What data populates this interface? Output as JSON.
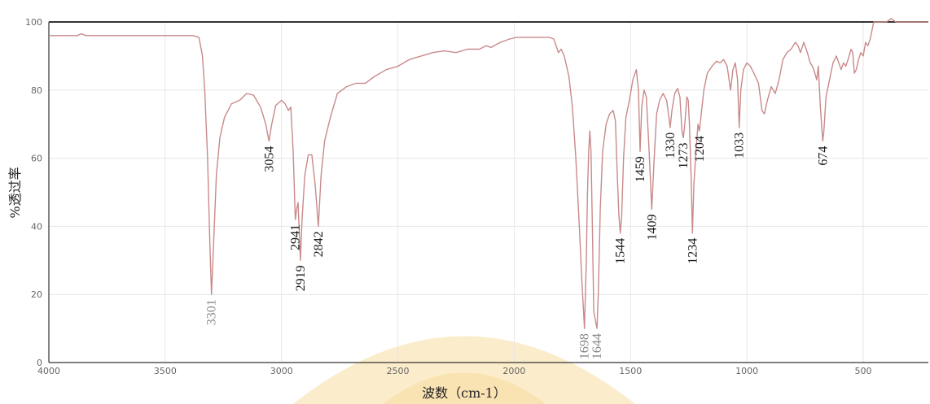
{
  "chart_data": {
    "type": "line",
    "title": "",
    "xlabel": "波数（cm-1）",
    "ylabel": "%透过率",
    "xlim": [
      4000,
      220
    ],
    "ylim": [
      0,
      100
    ],
    "x_ticks": [
      "4000",
      "3500",
      "3000",
      "2500",
      "2000",
      "1500",
      "1000",
      "500"
    ],
    "y_ticks": [
      "0",
      "20",
      "40",
      "60",
      "80",
      "100"
    ],
    "grid": true,
    "colors": {
      "line": "#c98a8a",
      "grid": "#e6e6e6",
      "frame": "#333333",
      "peak_label": "#1a1a1a",
      "peak_label_light": "#888888",
      "watermark": "#f3c96a"
    },
    "series": [
      {
        "points": [
          [
            4000,
            96
          ],
          [
            3880,
            96
          ],
          [
            3860,
            96.5
          ],
          [
            3840,
            96
          ],
          [
            3500,
            96
          ],
          [
            3380,
            96
          ],
          [
            3355,
            95.5
          ],
          [
            3340,
            90
          ],
          [
            3330,
            80
          ],
          [
            3318,
            60
          ],
          [
            3308,
            35
          ],
          [
            3301,
            20
          ],
          [
            3292,
            35
          ],
          [
            3280,
            55
          ],
          [
            3265,
            66
          ],
          [
            3245,
            72
          ],
          [
            3215,
            76
          ],
          [
            3180,
            77
          ],
          [
            3150,
            79
          ],
          [
            3120,
            78.5
          ],
          [
            3090,
            75
          ],
          [
            3068,
            70
          ],
          [
            3054,
            65
          ],
          [
            3042,
            70
          ],
          [
            3025,
            75.5
          ],
          [
            3000,
            77
          ],
          [
            2985,
            76
          ],
          [
            2970,
            74
          ],
          [
            2960,
            75
          ],
          [
            2950,
            62
          ],
          [
            2941,
            42
          ],
          [
            2935,
            45
          ],
          [
            2929,
            47
          ],
          [
            2919,
            30
          ],
          [
            2912,
            42
          ],
          [
            2900,
            55
          ],
          [
            2885,
            61
          ],
          [
            2870,
            61
          ],
          [
            2855,
            52
          ],
          [
            2842,
            40
          ],
          [
            2830,
            55
          ],
          [
            2815,
            65
          ],
          [
            2790,
            72
          ],
          [
            2760,
            79
          ],
          [
            2720,
            81
          ],
          [
            2680,
            82
          ],
          [
            2640,
            82
          ],
          [
            2600,
            84
          ],
          [
            2550,
            86
          ],
          [
            2500,
            87
          ],
          [
            2450,
            89
          ],
          [
            2400,
            90
          ],
          [
            2350,
            91
          ],
          [
            2300,
            91.5
          ],
          [
            2250,
            91
          ],
          [
            2200,
            92
          ],
          [
            2150,
            92
          ],
          [
            2120,
            93
          ],
          [
            2100,
            92.5
          ],
          [
            2060,
            94
          ],
          [
            2020,
            95
          ],
          [
            1990,
            95.5
          ],
          [
            1850,
            95.5
          ],
          [
            1830,
            95
          ],
          [
            1820,
            93
          ],
          [
            1810,
            91
          ],
          [
            1798,
            92
          ],
          [
            1785,
            90
          ],
          [
            1765,
            84
          ],
          [
            1750,
            75
          ],
          [
            1735,
            60
          ],
          [
            1720,
            40
          ],
          [
            1710,
            25
          ],
          [
            1698,
            10
          ],
          [
            1690,
            30
          ],
          [
            1685,
            50
          ],
          [
            1680,
            62
          ],
          [
            1675,
            68
          ],
          [
            1670,
            62
          ],
          [
            1664,
            40
          ],
          [
            1658,
            15
          ],
          [
            1650,
            12
          ],
          [
            1644,
            10
          ],
          [
            1638,
            22
          ],
          [
            1630,
            45
          ],
          [
            1620,
            62
          ],
          [
            1605,
            70
          ],
          [
            1590,
            73
          ],
          [
            1575,
            74
          ],
          [
            1565,
            71
          ],
          [
            1557,
            55
          ],
          [
            1550,
            43
          ],
          [
            1544,
            38
          ],
          [
            1538,
            43
          ],
          [
            1530,
            60
          ],
          [
            1520,
            72
          ],
          [
            1505,
            77
          ],
          [
            1490,
            83
          ],
          [
            1475,
            86
          ],
          [
            1466,
            80
          ],
          [
            1459,
            62
          ],
          [
            1452,
            75
          ],
          [
            1442,
            80
          ],
          [
            1432,
            78
          ],
          [
            1420,
            62
          ],
          [
            1409,
            45
          ],
          [
            1400,
            58
          ],
          [
            1388,
            73
          ],
          [
            1375,
            77
          ],
          [
            1360,
            79
          ],
          [
            1345,
            77
          ],
          [
            1335,
            72
          ],
          [
            1330,
            69
          ],
          [
            1322,
            74
          ],
          [
            1310,
            79
          ],
          [
            1298,
            80.5
          ],
          [
            1288,
            78
          ],
          [
            1279,
            68
          ],
          [
            1273,
            66
          ],
          [
            1267,
            70
          ],
          [
            1258,
            78
          ],
          [
            1252,
            77
          ],
          [
            1247,
            70
          ],
          [
            1240,
            55
          ],
          [
            1234,
            38
          ],
          [
            1228,
            52
          ],
          [
            1219,
            62
          ],
          [
            1210,
            70
          ],
          [
            1204,
            68
          ],
          [
            1196,
            73
          ],
          [
            1185,
            80
          ],
          [
            1170,
            85
          ],
          [
            1150,
            87
          ],
          [
            1130,
            88.5
          ],
          [
            1115,
            88
          ],
          [
            1100,
            89
          ],
          [
            1085,
            87
          ],
          [
            1070,
            80
          ],
          [
            1060,
            86
          ],
          [
            1050,
            88
          ],
          [
            1040,
            83
          ],
          [
            1033,
            69
          ],
          [
            1026,
            80
          ],
          [
            1015,
            86
          ],
          [
            1000,
            88
          ],
          [
            985,
            87
          ],
          [
            970,
            85
          ],
          [
            950,
            82
          ],
          [
            935,
            74
          ],
          [
            925,
            73
          ],
          [
            912,
            77
          ],
          [
            895,
            81
          ],
          [
            878,
            79
          ],
          [
            862,
            83
          ],
          [
            845,
            89
          ],
          [
            828,
            91
          ],
          [
            810,
            92
          ],
          [
            792,
            94
          ],
          [
            780,
            93
          ],
          [
            770,
            91
          ],
          [
            755,
            94
          ],
          [
            740,
            91
          ],
          [
            728,
            88
          ],
          [
            718,
            87
          ],
          [
            708,
            85
          ],
          [
            700,
            83
          ],
          [
            693,
            87
          ],
          [
            684,
            75
          ],
          [
            677,
            68
          ],
          [
            674,
            65
          ],
          [
            669,
            68
          ],
          [
            660,
            78
          ],
          [
            645,
            83
          ],
          [
            630,
            88
          ],
          [
            615,
            90
          ],
          [
            605,
            88
          ],
          [
            595,
            86
          ],
          [
            585,
            88
          ],
          [
            575,
            87
          ],
          [
            565,
            89
          ],
          [
            552,
            92
          ],
          [
            545,
            91
          ],
          [
            538,
            85
          ],
          [
            530,
            86
          ],
          [
            520,
            89
          ],
          [
            510,
            91
          ],
          [
            500,
            90
          ],
          [
            490,
            94
          ],
          [
            480,
            93
          ],
          [
            470,
            95
          ],
          [
            455,
            100
          ],
          [
            400,
            100
          ],
          [
            380,
            101
          ],
          [
            360,
            100
          ],
          [
            220,
            100
          ]
        ]
      }
    ],
    "peaks": [
      {
        "label": "3301",
        "x": 3301,
        "y": 20,
        "style": "light"
      },
      {
        "label": "3054",
        "x": 3054,
        "y": 65,
        "style": "dark"
      },
      {
        "label": "2941",
        "x": 2941,
        "y": 42,
        "style": "dark"
      },
      {
        "label": "2919",
        "x": 2919,
        "y": 30,
        "style": "dark"
      },
      {
        "label": "2842",
        "x": 2842,
        "y": 40,
        "style": "dark"
      },
      {
        "label": "1698",
        "x": 1698,
        "y": 10,
        "style": "light"
      },
      {
        "label": "1644",
        "x": 1644,
        "y": 10,
        "style": "light"
      },
      {
        "label": "1544",
        "x": 1544,
        "y": 38,
        "style": "dark"
      },
      {
        "label": "1459",
        "x": 1459,
        "y": 62,
        "style": "dark"
      },
      {
        "label": "1409",
        "x": 1409,
        "y": 45,
        "style": "dark"
      },
      {
        "label": "1330",
        "x": 1330,
        "y": 69,
        "style": "dark"
      },
      {
        "label": "1273",
        "x": 1273,
        "y": 66,
        "style": "dark"
      },
      {
        "label": "1234",
        "x": 1234,
        "y": 38,
        "style": "dark"
      },
      {
        "label": "1204",
        "x": 1204,
        "y": 68,
        "style": "dark"
      },
      {
        "label": "1033",
        "x": 1033,
        "y": 69,
        "style": "dark"
      },
      {
        "label": "674",
        "x": 674,
        "y": 65,
        "style": "dark"
      }
    ]
  }
}
